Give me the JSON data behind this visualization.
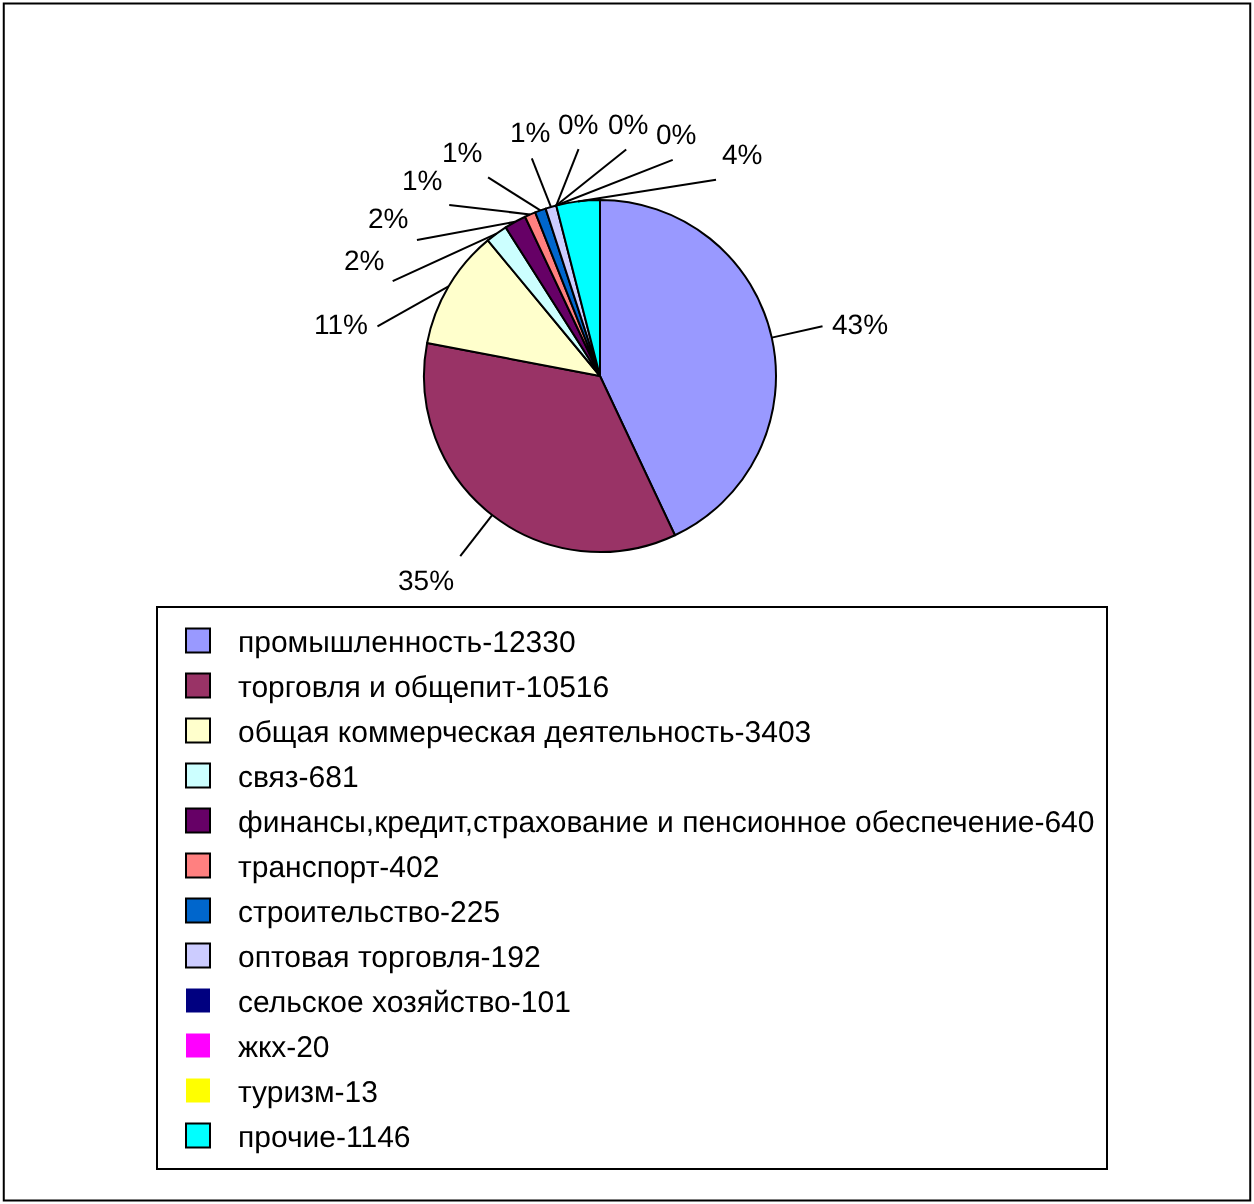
{
  "chart_data": {
    "type": "pie",
    "categories": [
      "промышленность-12330",
      "торговля и общепит-10516",
      "общая коммерческая деятельность-3403",
      "связ-681",
      "финансы,кредит,страхование и пенсионное обеспечение-640",
      "транспорт-402",
      "строительство-225",
      "оптовая торговля-192",
      "сельское хозяйство-101",
      "жкх-20",
      "туризм-13",
      "прочие-1146"
    ],
    "values": [
      43,
      35,
      11,
      2,
      2,
      1,
      1,
      1,
      0,
      0,
      0,
      4
    ],
    "colors": [
      "#9999ff",
      "#993366",
      "#ffffcc",
      "#ccffff",
      "#660066",
      "#ff8080",
      "#0066cc",
      "#ccccff",
      "#000080",
      "#ff00ff",
      "#ffff00",
      "#00ffff"
    ],
    "value_labels": [
      "43%",
      "35%",
      "11%",
      "2%",
      "2%",
      "1%",
      "1%",
      "1%",
      "0%",
      "0%",
      "0%",
      "4%"
    ],
    "legend": "bottom"
  }
}
